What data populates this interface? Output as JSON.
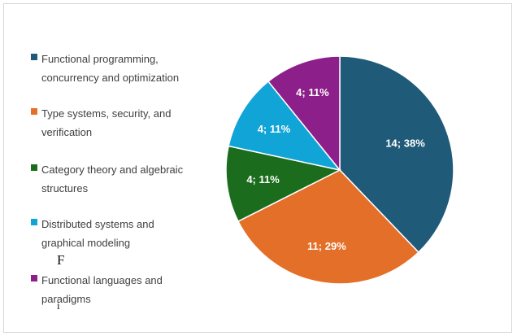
{
  "chart_data": {
    "type": "pie",
    "title": "",
    "legend_position": "left",
    "slices": [
      {
        "label": "Functional programming, concurrency and optimization",
        "value": 14,
        "percent": "38%",
        "data_label": "14; 38%",
        "color": "#1f5a78"
      },
      {
        "label": "Type systems, security, and verification",
        "value": 11,
        "percent": "29%",
        "data_label": "11; 29%",
        "color": "#e46f29"
      },
      {
        "label": "Category theory and algebraic structures",
        "value": 4,
        "percent": "11%",
        "data_label": "4; 11%",
        "color": "#1b6d1d"
      },
      {
        "label": "Distributed systems and graphical modeling",
        "value": 4,
        "percent": "11%",
        "data_label": "4; 11%",
        "color": "#11a4d6"
      },
      {
        "label": "Functional languages and paradigms",
        "value": 4,
        "percent": "11%",
        "data_label": "4; 11%",
        "color": "#8d1f8a"
      }
    ]
  },
  "legend": {
    "items": [
      {
        "line1": "Functional programming,",
        "line2": "concurrency and optimization"
      },
      {
        "line1": "Type systems, security, and",
        "line2": "verification"
      },
      {
        "line1": "Category theory and algebraic",
        "line2": "structures"
      },
      {
        "line1": "Distributed systems and",
        "line2": "graphical modeling"
      },
      {
        "line1": "Functional languages and",
        "line2": "paradigms"
      }
    ]
  },
  "artifacts": {
    "letter_f": "F",
    "letter_i": "i"
  }
}
